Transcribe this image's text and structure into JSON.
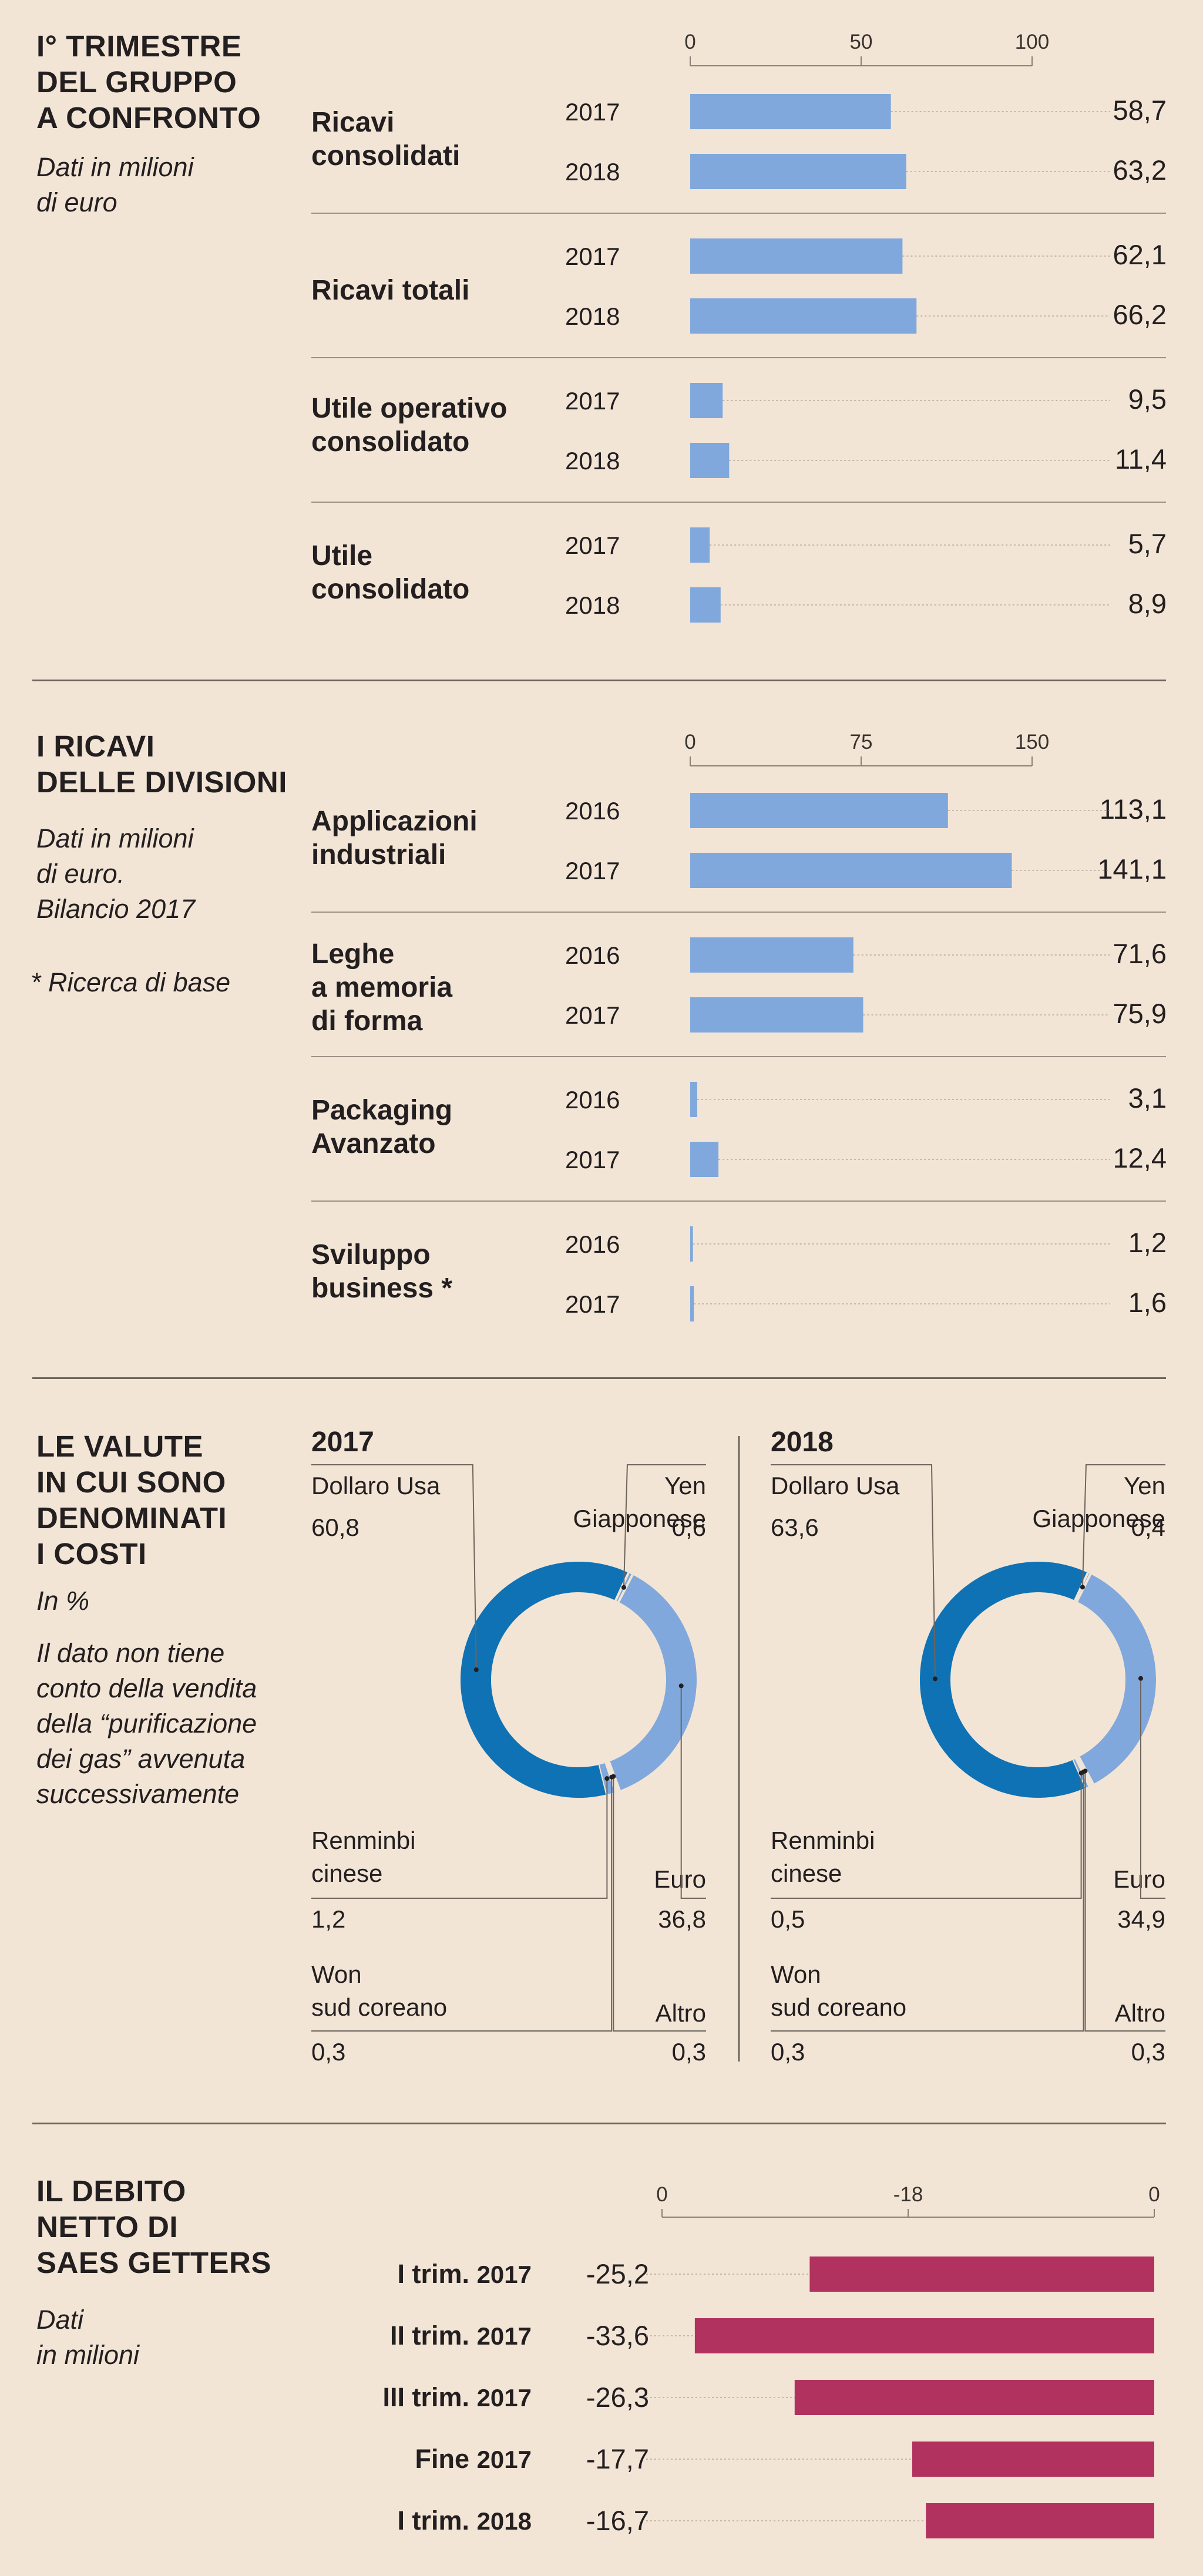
{
  "colors": {
    "bar": "#80a8dc",
    "debt": "#b1325e",
    "donut_dark": "#0f72b4",
    "donut_light": "#80a8dc",
    "bg": "#f3e5d6"
  },
  "q1": {
    "title": [
      "I° TRIMESTRE",
      "DEL GRUPPO",
      "A CONFRONTO"
    ],
    "note": [
      "Dati in milioni",
      "di euro"
    ]
  },
  "div": {
    "title": [
      "I RICAVI",
      "DELLE DIVISIONI"
    ],
    "note": [
      "Dati in milioni",
      "di euro.",
      "Bilancio 2017"
    ],
    "footnote": "* Ricerca di base"
  },
  "cur": {
    "title": [
      "LE VALUTE",
      "IN CUI SONO",
      "DENOMINATI",
      "I COSTI"
    ],
    "unit": "In %",
    "note": [
      "Il dato non tiene",
      "conto della vendita",
      "della “purificazione",
      "dei gas” avvenuta",
      "successivamente"
    ]
  },
  "debt": {
    "title": [
      "IL DEBITO",
      "NETTO DI",
      "SAES GETTERS"
    ],
    "note": [
      "Dati",
      "in milioni"
    ]
  },
  "chart_data": [
    {
      "type": "bar",
      "title": "I° TRIMESTRE DEL GRUPPO A CONFRONTO",
      "ticks": [
        "0",
        "50",
        "100"
      ],
      "xlim": [
        0,
        100
      ],
      "categories": [
        {
          "label": [
            "Ricavi",
            "consolidati"
          ],
          "bars": [
            {
              "year": "2017",
              "value": 58.7,
              "text": "58,7"
            },
            {
              "year": "2018",
              "value": 63.2,
              "text": "63,2"
            }
          ]
        },
        {
          "label": [
            "Ricavi totali"
          ],
          "bars": [
            {
              "year": "2017",
              "value": 62.1,
              "text": "62,1"
            },
            {
              "year": "2018",
              "value": 66.2,
              "text": "66,2"
            }
          ]
        },
        {
          "label": [
            "Utile operativo",
            "consolidato"
          ],
          "bars": [
            {
              "year": "2017",
              "value": 9.5,
              "text": "9,5"
            },
            {
              "year": "2018",
              "value": 11.4,
              "text": "11,4"
            }
          ]
        },
        {
          "label": [
            "Utile",
            "consolidato"
          ],
          "bars": [
            {
              "year": "2017",
              "value": 5.7,
              "text": "5,7"
            },
            {
              "year": "2018",
              "value": 8.9,
              "text": "8,9"
            }
          ]
        }
      ]
    },
    {
      "type": "bar",
      "title": "I RICAVI DELLE DIVISIONI",
      "ticks": [
        "0",
        "75",
        "150"
      ],
      "xlim": [
        0,
        150
      ],
      "categories": [
        {
          "label": [
            "Applicazioni",
            "industriali"
          ],
          "bars": [
            {
              "year": "2016",
              "value": 113.1,
              "text": "113,1"
            },
            {
              "year": "2017",
              "value": 141.1,
              "text": "141,1"
            }
          ]
        },
        {
          "label": [
            "Leghe",
            "a memoria",
            "di forma"
          ],
          "bars": [
            {
              "year": "2016",
              "value": 71.6,
              "text": "71,6"
            },
            {
              "year": "2017",
              "value": 75.9,
              "text": "75,9"
            }
          ]
        },
        {
          "label": [
            "Packaging",
            "Avanzato"
          ],
          "bars": [
            {
              "year": "2016",
              "value": 3.1,
              "text": "3,1"
            },
            {
              "year": "2017",
              "value": 12.4,
              "text": "12,4"
            }
          ]
        },
        {
          "label": [
            "Sviluppo",
            "business *"
          ],
          "bars": [
            {
              "year": "2016",
              "value": 1.2,
              "text": "1,2"
            },
            {
              "year": "2017",
              "value": 1.6,
              "text": "1,6"
            }
          ]
        }
      ]
    },
    {
      "type": "pie",
      "title": "2017",
      "slices": [
        {
          "label": "Dollaro Usa",
          "value": 60.8,
          "text": "60,8",
          "tone": "dark"
        },
        {
          "label": "Yen Giapponese",
          "value": 0.6,
          "text": "0,6",
          "tone": "light"
        },
        {
          "label": "Euro",
          "value": 36.8,
          "text": "36,8",
          "tone": "light"
        },
        {
          "label": "Altro",
          "value": 0.3,
          "text": "0,3",
          "tone": "light"
        },
        {
          "label": "Won sud coreano",
          "value": 0.3,
          "text": "0,3",
          "tone": "light"
        },
        {
          "label": "Renminbi cinese",
          "value": 1.2,
          "text": "1,2",
          "tone": "light"
        }
      ]
    },
    {
      "type": "pie",
      "title": "2018",
      "slices": [
        {
          "label": "Dollaro Usa",
          "value": 63.6,
          "text": "63,6",
          "tone": "dark"
        },
        {
          "label": "Yen Giapponese",
          "value": 0.4,
          "text": "0,4",
          "tone": "light"
        },
        {
          "label": "Euro",
          "value": 34.9,
          "text": "34,9",
          "tone": "light"
        },
        {
          "label": "Altro",
          "value": 0.3,
          "text": "0,3",
          "tone": "light"
        },
        {
          "label": "Won sud coreano",
          "value": 0.3,
          "text": "0,3",
          "tone": "light"
        },
        {
          "label": "Renminbi cinese",
          "value": 0.5,
          "text": "0,5",
          "tone": "light"
        }
      ]
    },
    {
      "type": "bar",
      "title": "IL DEBITO NETTO DI SAES GETTERS",
      "ticks": [
        "0",
        "-18",
        "0"
      ],
      "xlim": [
        -36,
        0
      ],
      "categories": [
        {
          "label": "I trim.",
          "year": "2017",
          "value": -25.2,
          "text": "-25,2"
        },
        {
          "label": "II trim.",
          "year": "2017",
          "value": -33.6,
          "text": "-33,6"
        },
        {
          "label": "III trim.",
          "year": "2017",
          "value": -26.3,
          "text": "-26,3"
        },
        {
          "label": "Fine",
          "year": "2017",
          "value": -17.7,
          "text": "-17,7"
        },
        {
          "label": "I trim.",
          "year": "2018",
          "value": -16.7,
          "text": "-16,7"
        }
      ]
    }
  ]
}
